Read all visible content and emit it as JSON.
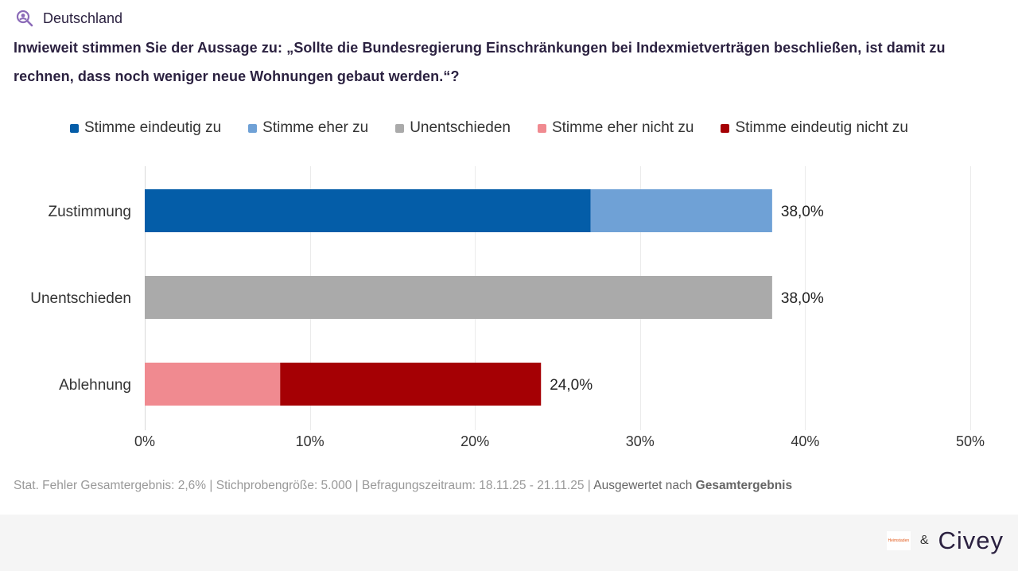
{
  "header": {
    "region_label": "Deutschland",
    "question": "Inwieweit stimmen Sie der Aussage zu: „Sollte die Bundesregierung Einschränkungen bei Indexmietverträgen beschließen, ist damit zu rechnen, dass noch weniger neue Wohnungen gebaut werden.“?"
  },
  "legend": [
    {
      "label": "Stimme eindeutig zu",
      "color": "#045da8"
    },
    {
      "label": "Stimme eher zu",
      "color": "#6fa1d6"
    },
    {
      "label": "Unentschieden",
      "color": "#aaaaaa"
    },
    {
      "label": "Stimme eher nicht zu",
      "color": "#f08a90"
    },
    {
      "label": "Stimme eindeutig nicht zu",
      "color": "#a50004"
    }
  ],
  "chart_data": {
    "type": "bar",
    "orientation": "horizontal",
    "stacked": true,
    "categories": [
      "Zustimmung",
      "Unentschieden",
      "Ablehnung"
    ],
    "series": [
      {
        "name": "Stimme eindeutig zu",
        "values": [
          27.0,
          0,
          0
        ]
      },
      {
        "name": "Stimme eher zu",
        "values": [
          11.0,
          0,
          0
        ]
      },
      {
        "name": "Unentschieden",
        "values": [
          0,
          38.0,
          0
        ]
      },
      {
        "name": "Stimme eher nicht zu",
        "values": [
          0,
          0,
          8.2
        ]
      },
      {
        "name": "Stimme eindeutig nicht zu",
        "values": [
          0,
          0,
          15.8
        ]
      }
    ],
    "totals_labels": [
      "38,0%",
      "38,0%",
      "24,0%"
    ],
    "xlim": [
      0,
      50
    ],
    "xticks": [
      "0%",
      "10%",
      "20%",
      "30%",
      "40%",
      "50%"
    ],
    "grid": true,
    "legend_position": "top"
  },
  "footer": {
    "stats": "Stat. Fehler Gesamtergebnis: 2,6% | Stichprobengröße: 5.000 | Befragungszeitraum: 18.11.25 - 21.11.25 |",
    "evaluated_prefix": "Ausgewertet nach",
    "evaluated_value": "Gesamtergebnis"
  },
  "branding": {
    "partner_logo_text": "Heimstaden",
    "ampersand": "&",
    "brand": "Civey"
  },
  "colors": {
    "accent": "#2b2140",
    "icon": "#8b6bb8"
  }
}
